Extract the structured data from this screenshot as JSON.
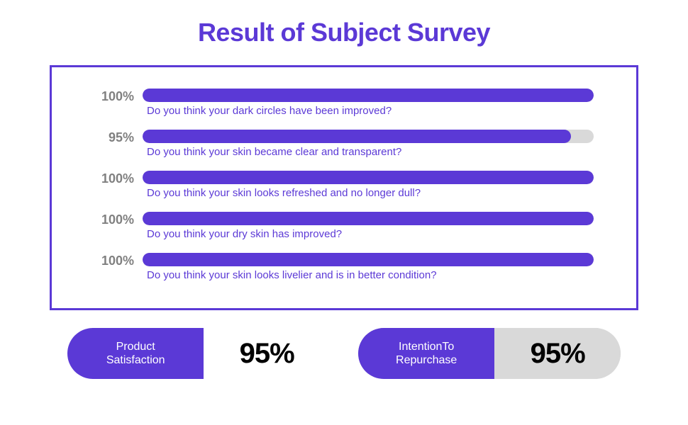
{
  "title": {
    "text": "Result of Subject Survey",
    "color": "#5b39d6",
    "fontsize": 36
  },
  "survey_box": {
    "border_color": "#5b39d6",
    "percent_color": "#808080",
    "percent_fontsize": 18,
    "question_color": "#5b39d6",
    "question_fontsize": 15,
    "bar_track_color": "#d9d9d9",
    "bar_fill_color": "#5b39d6",
    "items": [
      {
        "percent_label": "100%",
        "percent_value": 100,
        "question": "Do you think your dark circles have been improved?"
      },
      {
        "percent_label": "95%",
        "percent_value": 95,
        "question": "Do you think your skin became clear and transparent?"
      },
      {
        "percent_label": "100%",
        "percent_value": 100,
        "question": "Do you think your skin looks refreshed and no longer dull?"
      },
      {
        "percent_label": "100%",
        "percent_value": 100,
        "question": "Do you think your dry skin has improved?"
      },
      {
        "percent_label": "100%",
        "percent_value": 100,
        "question": "Do you think your skin looks livelier and is in better condition?"
      }
    ]
  },
  "summary": {
    "pill_left_color": "#5b39d6",
    "label_fontsize": 16,
    "value_fontsize": 40,
    "items": [
      {
        "label": "Product\nSatisfaction",
        "value": "95%",
        "right_bg": "#ffffff"
      },
      {
        "label": "IntentionTo\nRepurchase",
        "value": "95%",
        "right_bg": "#d9d9d9"
      }
    ]
  }
}
